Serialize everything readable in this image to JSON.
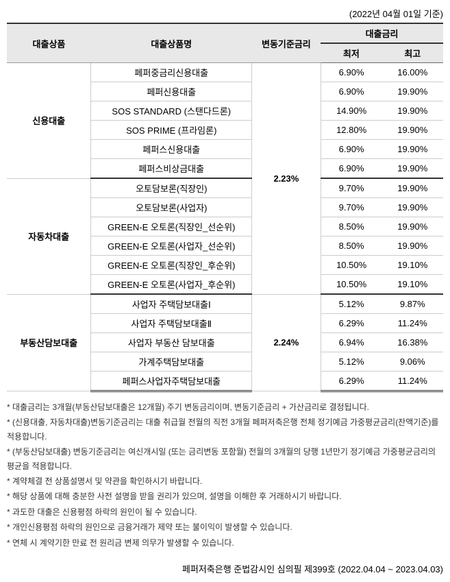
{
  "date_header": "(2022년 04월 01일 기준)",
  "table": {
    "headers": {
      "product": "대출상품",
      "name": "대출상품명",
      "base_rate": "변동기준금리",
      "loan_rate": "대출금리",
      "min": "최저",
      "max": "최고"
    },
    "sections": [
      {
        "category": "신용대출",
        "base_rate": "2.23%",
        "base_rate_rowspan": 12,
        "rows": [
          {
            "name": "페퍼중금리신용대출",
            "min": "6.90%",
            "max": "16.00%"
          },
          {
            "name": "페퍼신용대출",
            "min": "6.90%",
            "max": "19.90%"
          },
          {
            "name": "SOS STANDARD (스탠다드론)",
            "min": "14.90%",
            "max": "19.90%"
          },
          {
            "name": "SOS PRIME (프라임론)",
            "min": "12.80%",
            "max": "19.90%"
          },
          {
            "name": "페퍼스신용대출",
            "min": "6.90%",
            "max": "19.90%"
          },
          {
            "name": "페퍼스비상금대출",
            "min": "6.90%",
            "max": "19.90%"
          }
        ]
      },
      {
        "category": "자동차대출",
        "rows": [
          {
            "name": "오토담보론(직장인)",
            "min": "9.70%",
            "max": "19.90%"
          },
          {
            "name": "오토담보론(사업자)",
            "min": "9.70%",
            "max": "19.90%"
          },
          {
            "name": "GREEN-E 오토론(직장인_선순위)",
            "min": "8.50%",
            "max": "19.90%"
          },
          {
            "name": "GREEN-E 오토론(사업자_선순위)",
            "min": "8.50%",
            "max": "19.90%"
          },
          {
            "name": "GREEN-E 오토론(직장인_후순위)",
            "min": "10.50%",
            "max": "19.10%"
          },
          {
            "name": "GREEN-E 오토론(사업자_후순위)",
            "min": "10.50%",
            "max": "19.10%"
          }
        ]
      },
      {
        "category": "부동산담보대출",
        "base_rate": "2.24%",
        "base_rate_rowspan": 5,
        "rows": [
          {
            "name": "사업자 주택담보대출Ⅰ",
            "min": "5.12%",
            "max": "9.87%"
          },
          {
            "name": "사업자 주택담보대출Ⅱ",
            "min": "6.29%",
            "max": "11.24%"
          },
          {
            "name": "사업자 부동산 담보대출",
            "min": "6.94%",
            "max": "16.38%"
          },
          {
            "name": "가계주택담보대출",
            "min": "5.12%",
            "max": "9.06%"
          },
          {
            "name": "페퍼스사업자주택담보대출",
            "min": "6.29%",
            "max": "11.24%"
          }
        ]
      }
    ]
  },
  "notes": [
    "* 대출금리는 3개월(부동산담보대출은 12개월) 주기 변동금리이며, 변동기준금리 + 가산금리로 결정됩니다.",
    "* (신용대출, 자동차대출)변동기준금리는 대출 취급월 전월의 직전 3개월 페퍼저축은행 전체 정기예금 가중평균금리(잔액기준)를 적용합니다.",
    "* (부동산담보대출) 변동기준금리는 여신개시일 (또는 금리변동 포함월) 전월의 3개월의 당행 1년만기 정기예금 가중평균금리의 평균을 적용합니다.",
    "* 계약체결 전 상품설명서 및 약관을 확인하시기 바랍니다.",
    "* 해당 상품에 대해 충분한 사전 설명을 받을 권리가 있으며, 설명을 이해한 후 거래하시기 바랍니다.",
    "* 과도한 대출은 신용평점 하락의 원인이 될 수 있습니다.",
    "* 개인신용평점 하락의 원인으로 금융거래가 제약 또는 불이익이 발생할 수 있습니다.",
    "* 연체 시 계약기한 만료 전 원리금 변제 의무가 발생할 수 있습니다."
  ],
  "footer": "페퍼저축은행 준법감시인 심의필 제399호 (2022.04.04 ~ 2023.04.03)"
}
